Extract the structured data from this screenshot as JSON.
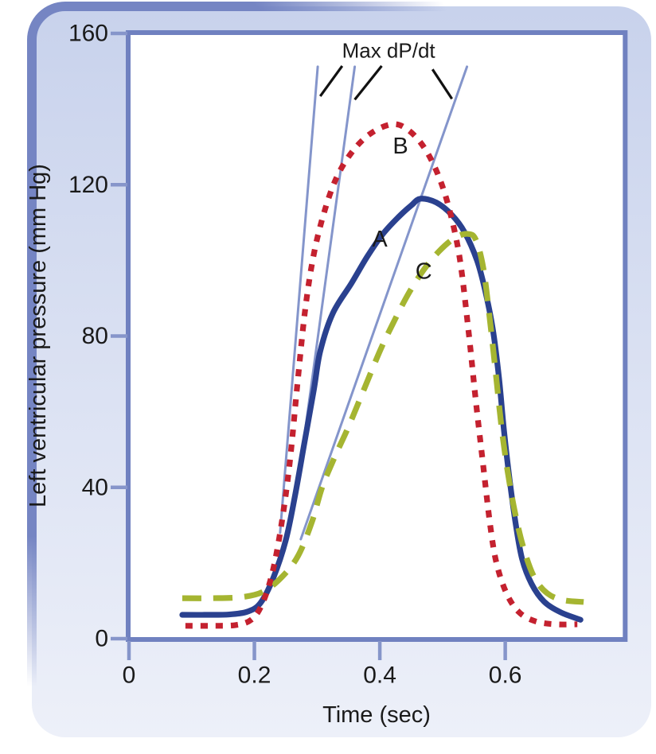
{
  "figure": {
    "panel_bg_top": "#c8d2ec",
    "panel_bg_bottom": "#edf0f9",
    "panel_border": "#7585c3",
    "plot_bg": "#ffffff",
    "frame_color": "#7081c0",
    "tick_color": "#8695ca",
    "text_color": "#1a1a1a"
  },
  "chart_data": {
    "type": "line",
    "title": "",
    "xlabel": "Time (sec)",
    "ylabel": "Left ventricular pressure (mm Hg)",
    "annotation": "Max dP/dt",
    "annotation_at": [
      0.414,
      155.5
    ],
    "xlim": [
      0,
      0.79
    ],
    "ylim": [
      0,
      160
    ],
    "grid": false,
    "xticks": [
      {
        "v": 0,
        "label": "0"
      },
      {
        "v": 0.2,
        "label": "0.2"
      },
      {
        "v": 0.4,
        "label": "0.4"
      },
      {
        "v": 0.6,
        "label": "0.6"
      }
    ],
    "yticks": [
      {
        "v": 0,
        "label": "0"
      },
      {
        "v": 40,
        "label": "40"
      },
      {
        "v": 80,
        "label": "80"
      },
      {
        "v": 120,
        "label": "120"
      },
      {
        "v": 160,
        "label": "160"
      }
    ],
    "series": [
      {
        "name": "A",
        "label": "A",
        "style": "solid",
        "color": "#2a418f",
        "label_at": [
          0.4,
          105.5
        ],
        "points": [
          [
            0.085,
            6.3
          ],
          [
            0.12,
            6.3
          ],
          [
            0.16,
            6.4
          ],
          [
            0.19,
            7.2
          ],
          [
            0.21,
            9.5
          ],
          [
            0.23,
            16
          ],
          [
            0.25,
            26
          ],
          [
            0.265,
            38
          ],
          [
            0.28,
            52
          ],
          [
            0.295,
            66
          ],
          [
            0.305,
            76
          ],
          [
            0.325,
            86
          ],
          [
            0.355,
            94
          ],
          [
            0.38,
            101
          ],
          [
            0.405,
            107
          ],
          [
            0.43,
            111.5
          ],
          [
            0.45,
            114.5
          ],
          [
            0.465,
            116.3
          ],
          [
            0.49,
            115.3
          ],
          [
            0.515,
            112
          ],
          [
            0.535,
            107.5
          ],
          [
            0.555,
            100
          ],
          [
            0.568,
            92
          ],
          [
            0.58,
            82
          ],
          [
            0.59,
            69
          ],
          [
            0.598,
            55
          ],
          [
            0.607,
            42
          ],
          [
            0.617,
            30
          ],
          [
            0.627,
            21
          ],
          [
            0.642,
            14.5
          ],
          [
            0.662,
            9.8
          ],
          [
            0.688,
            7
          ],
          [
            0.72,
            5
          ]
        ]
      },
      {
        "name": "B",
        "label": "B",
        "style": "dotted",
        "color": "#c4212f",
        "label_at": [
          0.433,
          130.1
        ],
        "points": [
          [
            0.09,
            3.4
          ],
          [
            0.13,
            3.4
          ],
          [
            0.17,
            3.6
          ],
          [
            0.195,
            5
          ],
          [
            0.212,
            9
          ],
          [
            0.228,
            17
          ],
          [
            0.242,
            29
          ],
          [
            0.256,
            46
          ],
          [
            0.269,
            68
          ],
          [
            0.281,
            87
          ],
          [
            0.294,
            101
          ],
          [
            0.31,
            112
          ],
          [
            0.33,
            121.5
          ],
          [
            0.355,
            128.5
          ],
          [
            0.385,
            133.5
          ],
          [
            0.42,
            136
          ],
          [
            0.445,
            134.5
          ],
          [
            0.47,
            130
          ],
          [
            0.492,
            123
          ],
          [
            0.51,
            114
          ],
          [
            0.527,
            101
          ],
          [
            0.541,
            82
          ],
          [
            0.553,
            63
          ],
          [
            0.564,
            47
          ],
          [
            0.576,
            30
          ],
          [
            0.586,
            20
          ],
          [
            0.602,
            12
          ],
          [
            0.622,
            7
          ],
          [
            0.648,
            4.6
          ],
          [
            0.68,
            3.8
          ],
          [
            0.715,
            3.8
          ]
        ]
      },
      {
        "name": "C",
        "label": "C",
        "style": "dashed",
        "color": "#a5b531",
        "label_at": [
          0.47,
          97.0
        ],
        "points": [
          [
            0.085,
            10.7
          ],
          [
            0.13,
            10.7
          ],
          [
            0.18,
            11
          ],
          [
            0.215,
            12.5
          ],
          [
            0.245,
            16.5
          ],
          [
            0.27,
            22
          ],
          [
            0.292,
            31
          ],
          [
            0.308,
            40
          ],
          [
            0.328,
            48
          ],
          [
            0.35,
            56
          ],
          [
            0.375,
            66
          ],
          [
            0.4,
            76
          ],
          [
            0.42,
            83
          ],
          [
            0.445,
            91
          ],
          [
            0.47,
            97.5
          ],
          [
            0.495,
            102.5
          ],
          [
            0.52,
            106
          ],
          [
            0.54,
            107
          ],
          [
            0.553,
            105.5
          ],
          [
            0.565,
            98
          ],
          [
            0.575,
            85
          ],
          [
            0.585,
            70
          ],
          [
            0.594,
            56
          ],
          [
            0.604,
            44
          ],
          [
            0.616,
            33
          ],
          [
            0.63,
            23.5
          ],
          [
            0.647,
            16
          ],
          [
            0.667,
            12
          ],
          [
            0.692,
            10.2
          ],
          [
            0.725,
            9.7
          ]
        ]
      }
    ],
    "tangents": {
      "color": "#8495cb",
      "lines": [
        [
          0.301,
          151.2,
          0.241,
          28.0
        ],
        [
          0.36,
          151.2,
          0.268,
          39.3
        ],
        [
          0.539,
          151.2,
          0.274,
          26.3
        ]
      ]
    },
    "pointers": [
      [
        0.34,
        151.4,
        0.305,
        143.4
      ],
      [
        0.403,
        151.4,
        0.36,
        142.5
      ],
      [
        0.484,
        150.5,
        0.515,
        142.7
      ]
    ]
  }
}
